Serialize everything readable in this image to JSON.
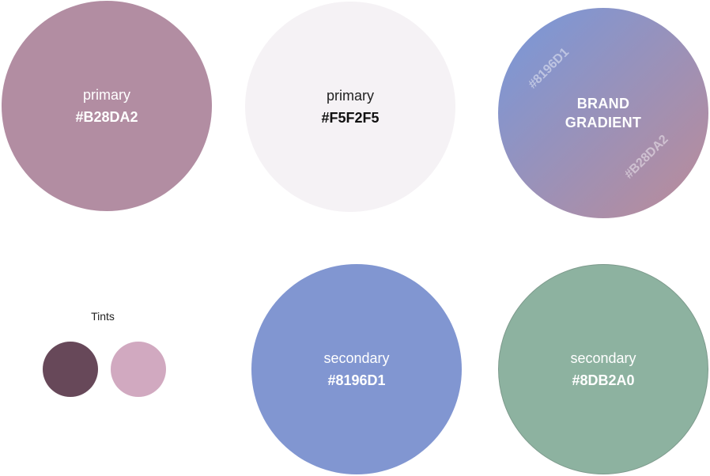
{
  "swatches": {
    "primary_1": {
      "name": "primary",
      "hex": "#B28DA2",
      "color": "#B28DA2"
    },
    "primary_2": {
      "name": "primary",
      "hex": "#F5F2F5",
      "color": "#F5F2F5"
    },
    "gradient": {
      "title_line1": "BRAND",
      "title_line2": "GRADIENT",
      "start_hex": "#8196D1",
      "end_hex": "#B28DA2",
      "start_color": "#8196D1",
      "end_color": "#B28DA2"
    },
    "secondary_1": {
      "name": "secondary",
      "hex": "#8196D1",
      "color": "#8196D1"
    },
    "secondary_2": {
      "name": "secondary",
      "hex": "#8DB2A0",
      "color": "#8DB2A0"
    }
  },
  "tints": {
    "label": "Tints",
    "dark_color": "#674859",
    "light_color": "#D1A9C0"
  }
}
